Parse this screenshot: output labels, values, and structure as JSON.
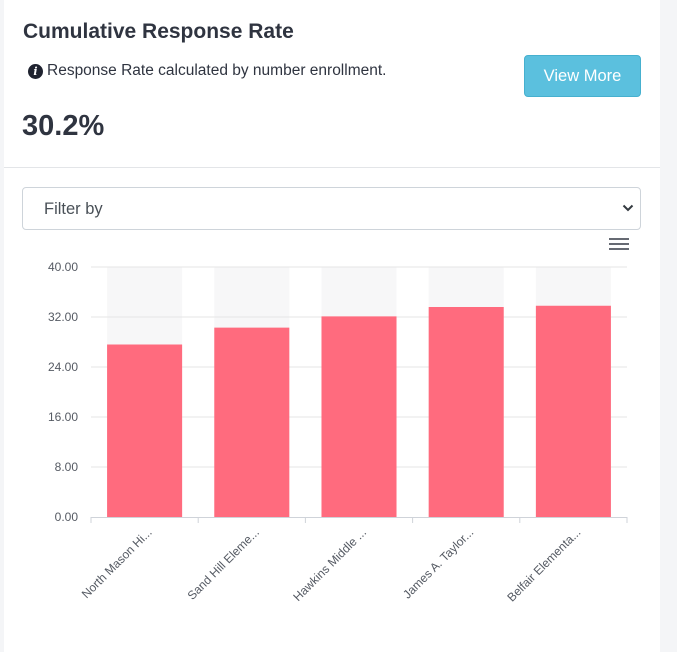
{
  "card": {
    "title": "Cumulative Response Rate",
    "info_text": "Response Rate calculated by number enrollment.",
    "info_icon": "info-circle-icon",
    "view_more_label": "View More",
    "big_value": "30.2%"
  },
  "filter": {
    "label": "Filter by",
    "icon": "chevron-down-icon"
  },
  "chart_menu_icon": "hamburger-menu-icon",
  "colors": {
    "bar": "#ff6b7e",
    "button": "#5bc0de"
  },
  "chart_data": {
    "type": "bar",
    "categories": [
      "North Mason Hi...",
      "Sand Hill Eleme...",
      "Hawkins Middle ...",
      "James A. Taylor...",
      "Belfair Elementa..."
    ],
    "values": [
      27.6,
      30.3,
      32.1,
      33.6,
      33.8
    ],
    "ylim": [
      0,
      40
    ],
    "yticks": [
      "0.00",
      "8.00",
      "16.00",
      "24.00",
      "32.00",
      "40.00"
    ],
    "title": "",
    "xlabel": "",
    "ylabel": "",
    "grid": true,
    "legend": "none"
  }
}
